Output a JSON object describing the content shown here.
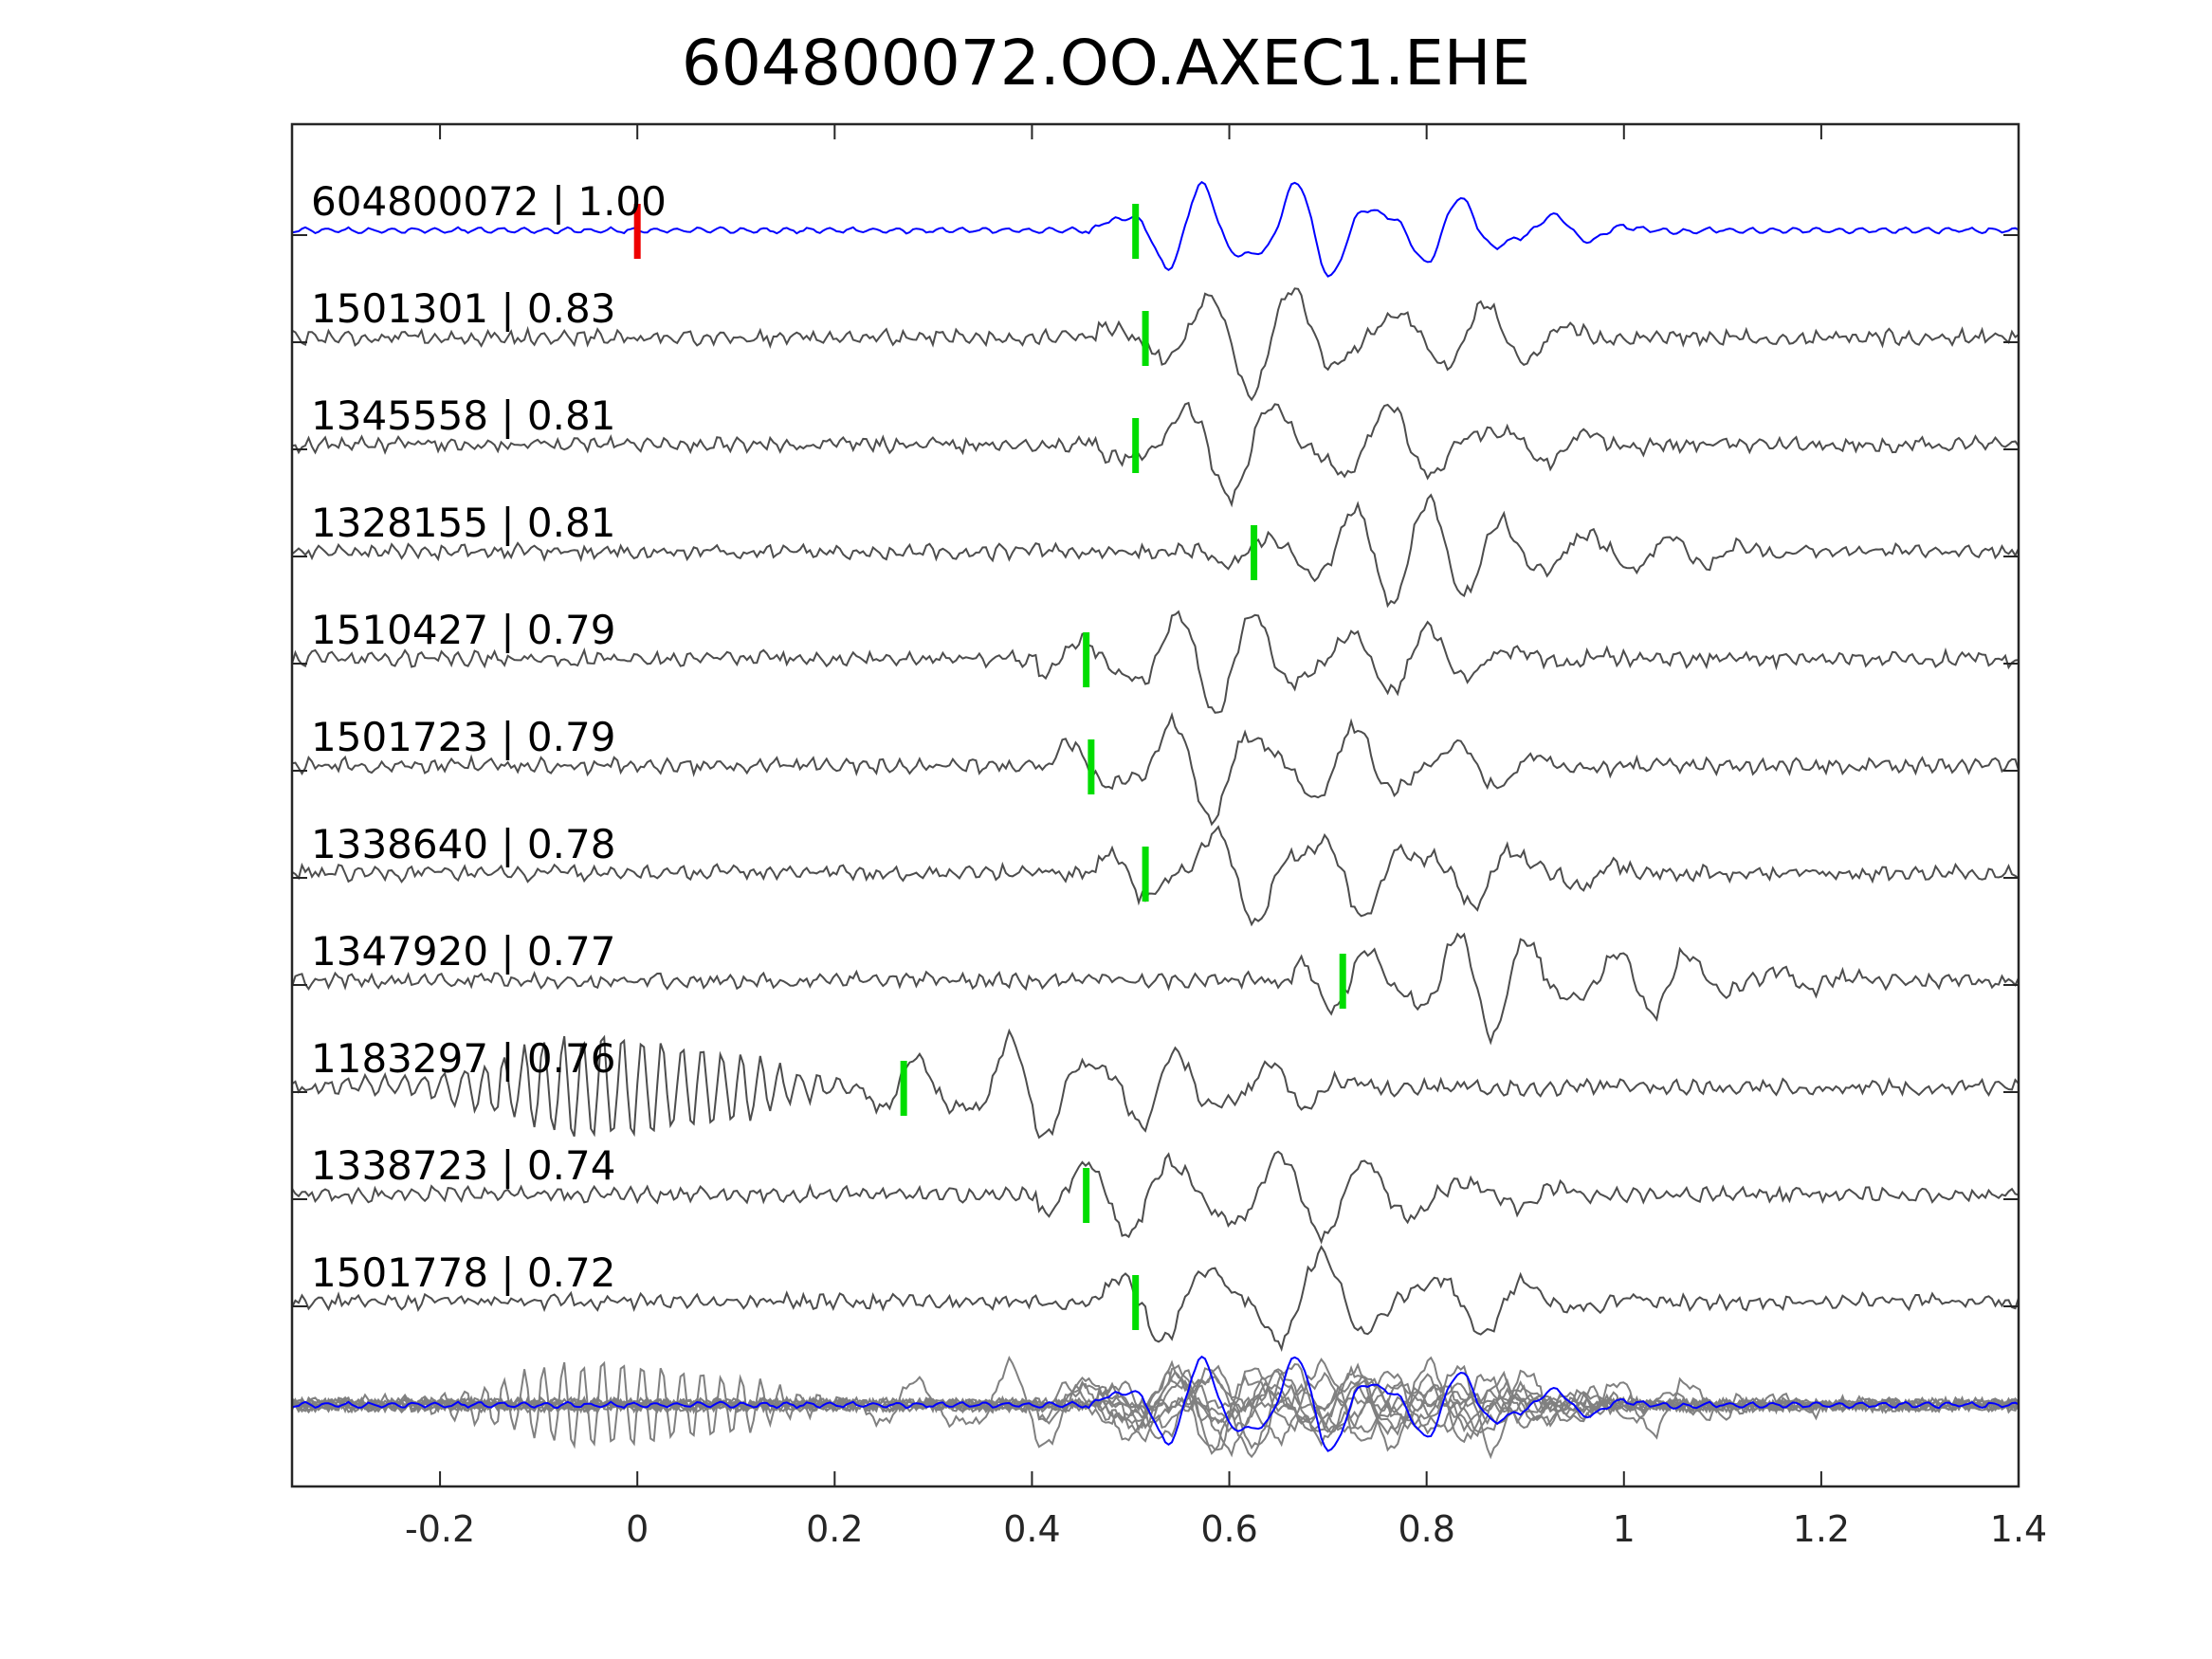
{
  "chart_data": {
    "type": "line",
    "title": "604800072.OO.AXEC1.EHE",
    "xlabel": "",
    "ylabel": "",
    "xlim": [
      -0.35,
      1.4
    ],
    "xticks": [
      -0.2,
      0,
      0.2,
      0.4,
      0.6,
      0.8,
      1,
      1.2,
      1.4
    ],
    "xtick_labels": [
      "-0.2",
      "0",
      "0.2",
      "0.4",
      "0.6",
      "0.8",
      "1",
      "1.2",
      "1.4"
    ],
    "grid": false,
    "colors": {
      "template": "#0000ff",
      "match": "#4d4d4d",
      "stack": "#808080",
      "pick": "#00dd00",
      "origin": "#ee0000"
    },
    "origin_marker_time": 0.0,
    "series": [
      {
        "id": "604800072",
        "name": "604800072 | 1.00",
        "cc": 1.0,
        "pick": 0.505,
        "template": true
      },
      {
        "id": "1501301",
        "name": "1501301 | 0.83",
        "cc": 0.83,
        "pick": 0.515
      },
      {
        "id": "1345558",
        "name": "1345558 | 0.81",
        "cc": 0.81,
        "pick": 0.505
      },
      {
        "id": "1328155",
        "name": "1328155 | 0.81",
        "cc": 0.81,
        "pick": 0.625
      },
      {
        "id": "1510427",
        "name": "1510427 | 0.79",
        "cc": 0.79,
        "pick": 0.455
      },
      {
        "id": "1501723",
        "name": "1501723 | 0.79",
        "cc": 0.79,
        "pick": 0.46
      },
      {
        "id": "1338640",
        "name": "1338640 | 0.78",
        "cc": 0.78,
        "pick": 0.515
      },
      {
        "id": "1347920",
        "name": "1347920 | 0.77",
        "cc": 0.77,
        "pick": 0.715
      },
      {
        "id": "1183297",
        "name": "1183297 | 0.76",
        "cc": 0.76,
        "pick": 0.27
      },
      {
        "id": "1338723",
        "name": "1338723 | 0.74",
        "cc": 0.74,
        "pick": 0.455
      },
      {
        "id": "1501778",
        "name": "1501778 | 0.72",
        "cc": 0.72,
        "pick": 0.505
      }
    ]
  }
}
